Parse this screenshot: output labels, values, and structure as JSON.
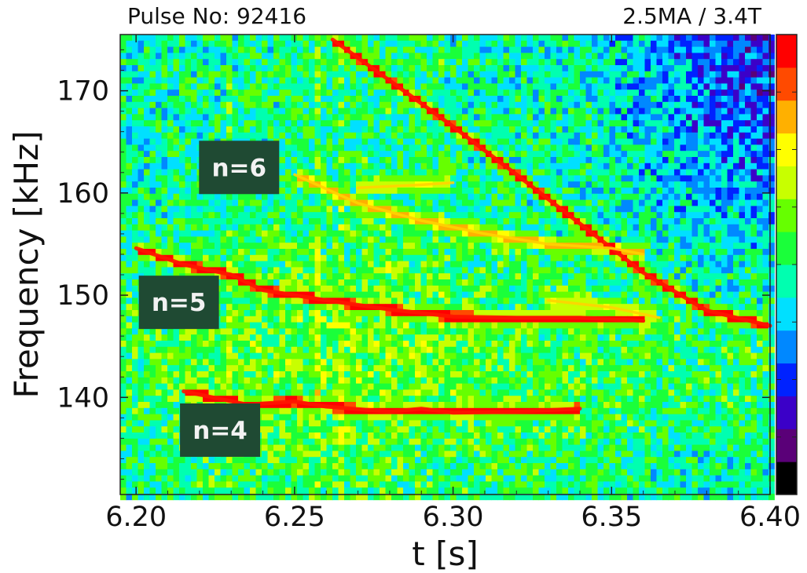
{
  "header": {
    "pulse_label": "Pulse No: 92416",
    "conditions_label": "2.5MA / 3.4T"
  },
  "chart_data": {
    "type": "heatmap",
    "title": "",
    "xlabel": "t [s]",
    "ylabel": "Frequency [kHz]",
    "xlim": [
      6.195,
      6.4
    ],
    "ylim": [
      130.5,
      175.5
    ],
    "x_ticks": [
      6.2,
      6.25,
      6.3,
      6.35,
      6.4
    ],
    "x_tick_labels": [
      "6.20",
      "6.25",
      "6.30",
      "6.35",
      "6.40"
    ],
    "y_ticks": [
      140,
      150,
      160,
      170
    ],
    "y_tick_labels": [
      "140",
      "150",
      "160",
      "170"
    ],
    "colormap": [
      "#000000",
      "#5a0078",
      "#3b00c8",
      "#0022ff",
      "#0088ff",
      "#00e0ff",
      "#00ffb0",
      "#1aff3a",
      "#66ff00",
      "#c8ff00",
      "#ffff00",
      "#ffb000",
      "#ff4a00",
      "#ff0000"
    ],
    "colorbar": true,
    "background_level": 0.42,
    "annotations": [
      {
        "text": "n=6",
        "x": 6.2325,
        "y": 162.5
      },
      {
        "text": "n=5",
        "x": 6.2135,
        "y": 149.3
      },
      {
        "text": "n=4",
        "x": 6.2265,
        "y": 136.8
      }
    ],
    "series": [
      {
        "x": [
          6.262,
          6.28,
          6.3,
          6.32,
          6.34,
          6.36,
          6.38,
          6.4
        ],
        "y": [
          175.0,
          171.0,
          166.5,
          161.8,
          157.0,
          152.2,
          148.5,
          147.0
        ],
        "intensity": 0.97
      },
      {
        "x": [
          6.25,
          6.27,
          6.29,
          6.31,
          6.33,
          6.35,
          6.36
        ],
        "y": [
          161.8,
          159.0,
          157.3,
          156.0,
          155.0,
          154.6,
          154.0
        ],
        "intensity": 0.82
      },
      {
        "x": [
          6.27,
          6.29,
          6.3
        ],
        "y": [
          160.5,
          160.8,
          161.0
        ],
        "intensity": 0.72
      },
      {
        "x": [
          6.2,
          6.215,
          6.23,
          6.24,
          6.25,
          6.26,
          6.28,
          6.3,
          6.32,
          6.34,
          6.36
        ],
        "y": [
          154.6,
          153.0,
          152.0,
          150.5,
          150.0,
          149.5,
          148.6,
          147.9,
          147.8,
          147.8,
          147.5
        ],
        "intensity": 0.97
      },
      {
        "x": [
          6.33,
          6.35,
          6.365
        ],
        "y": [
          149.5,
          148.8,
          147.8
        ],
        "intensity": 0.72
      },
      {
        "x": [
          6.215,
          6.235,
          6.25,
          6.26,
          6.28,
          6.29,
          6.3,
          6.32,
          6.34
        ],
        "y": [
          140.6,
          139.3,
          139.6,
          139.1,
          138.6,
          138.9,
          138.5,
          138.6,
          138.9
        ],
        "intensity": 0.97
      }
    ]
  }
}
